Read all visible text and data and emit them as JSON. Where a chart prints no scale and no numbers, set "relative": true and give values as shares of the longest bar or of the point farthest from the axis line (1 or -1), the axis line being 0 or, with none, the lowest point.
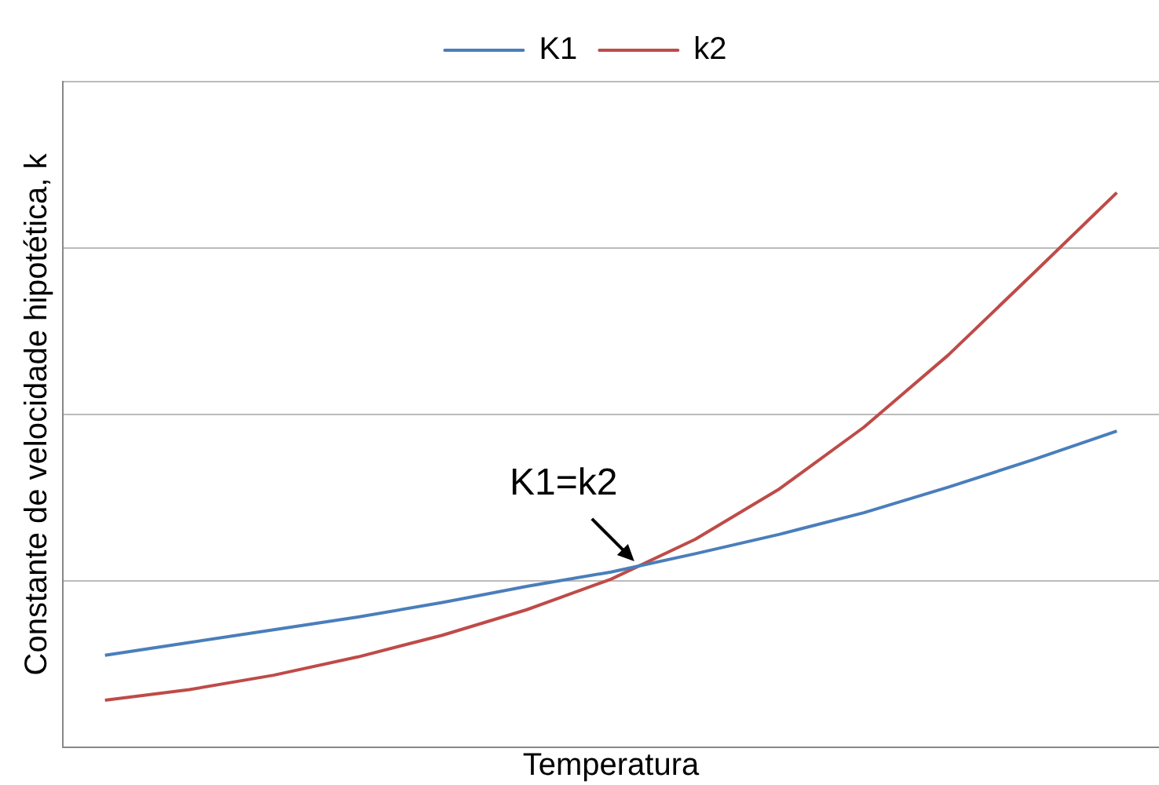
{
  "chart_data": {
    "type": "line",
    "relative": true,
    "xlabel": "Temperatura",
    "ylabel": "Constante de velocidade hipotética, k",
    "categories": [
      null,
      null,
      null,
      null,
      null,
      null,
      null,
      null,
      null,
      null,
      null,
      null,
      null
    ],
    "series": [
      {
        "name": "K1",
        "color": "#4a7ebb",
        "values": [
          0.166,
          0.189,
          0.212,
          0.235,
          0.261,
          0.29,
          0.316,
          0.349,
          0.384,
          0.423,
          0.469,
          0.518,
          0.57
        ]
      },
      {
        "name": "k2",
        "color": "#be4b48",
        "values": [
          0.085,
          0.104,
          0.13,
          0.163,
          0.202,
          0.248,
          0.303,
          0.375,
          0.466,
          0.577,
          0.707,
          0.853,
          1
        ]
      }
    ],
    "annotations": [
      "K1=k2"
    ],
    "grid": "y",
    "legend": "top",
    "marker": "none",
    "line_style": "solid"
  }
}
